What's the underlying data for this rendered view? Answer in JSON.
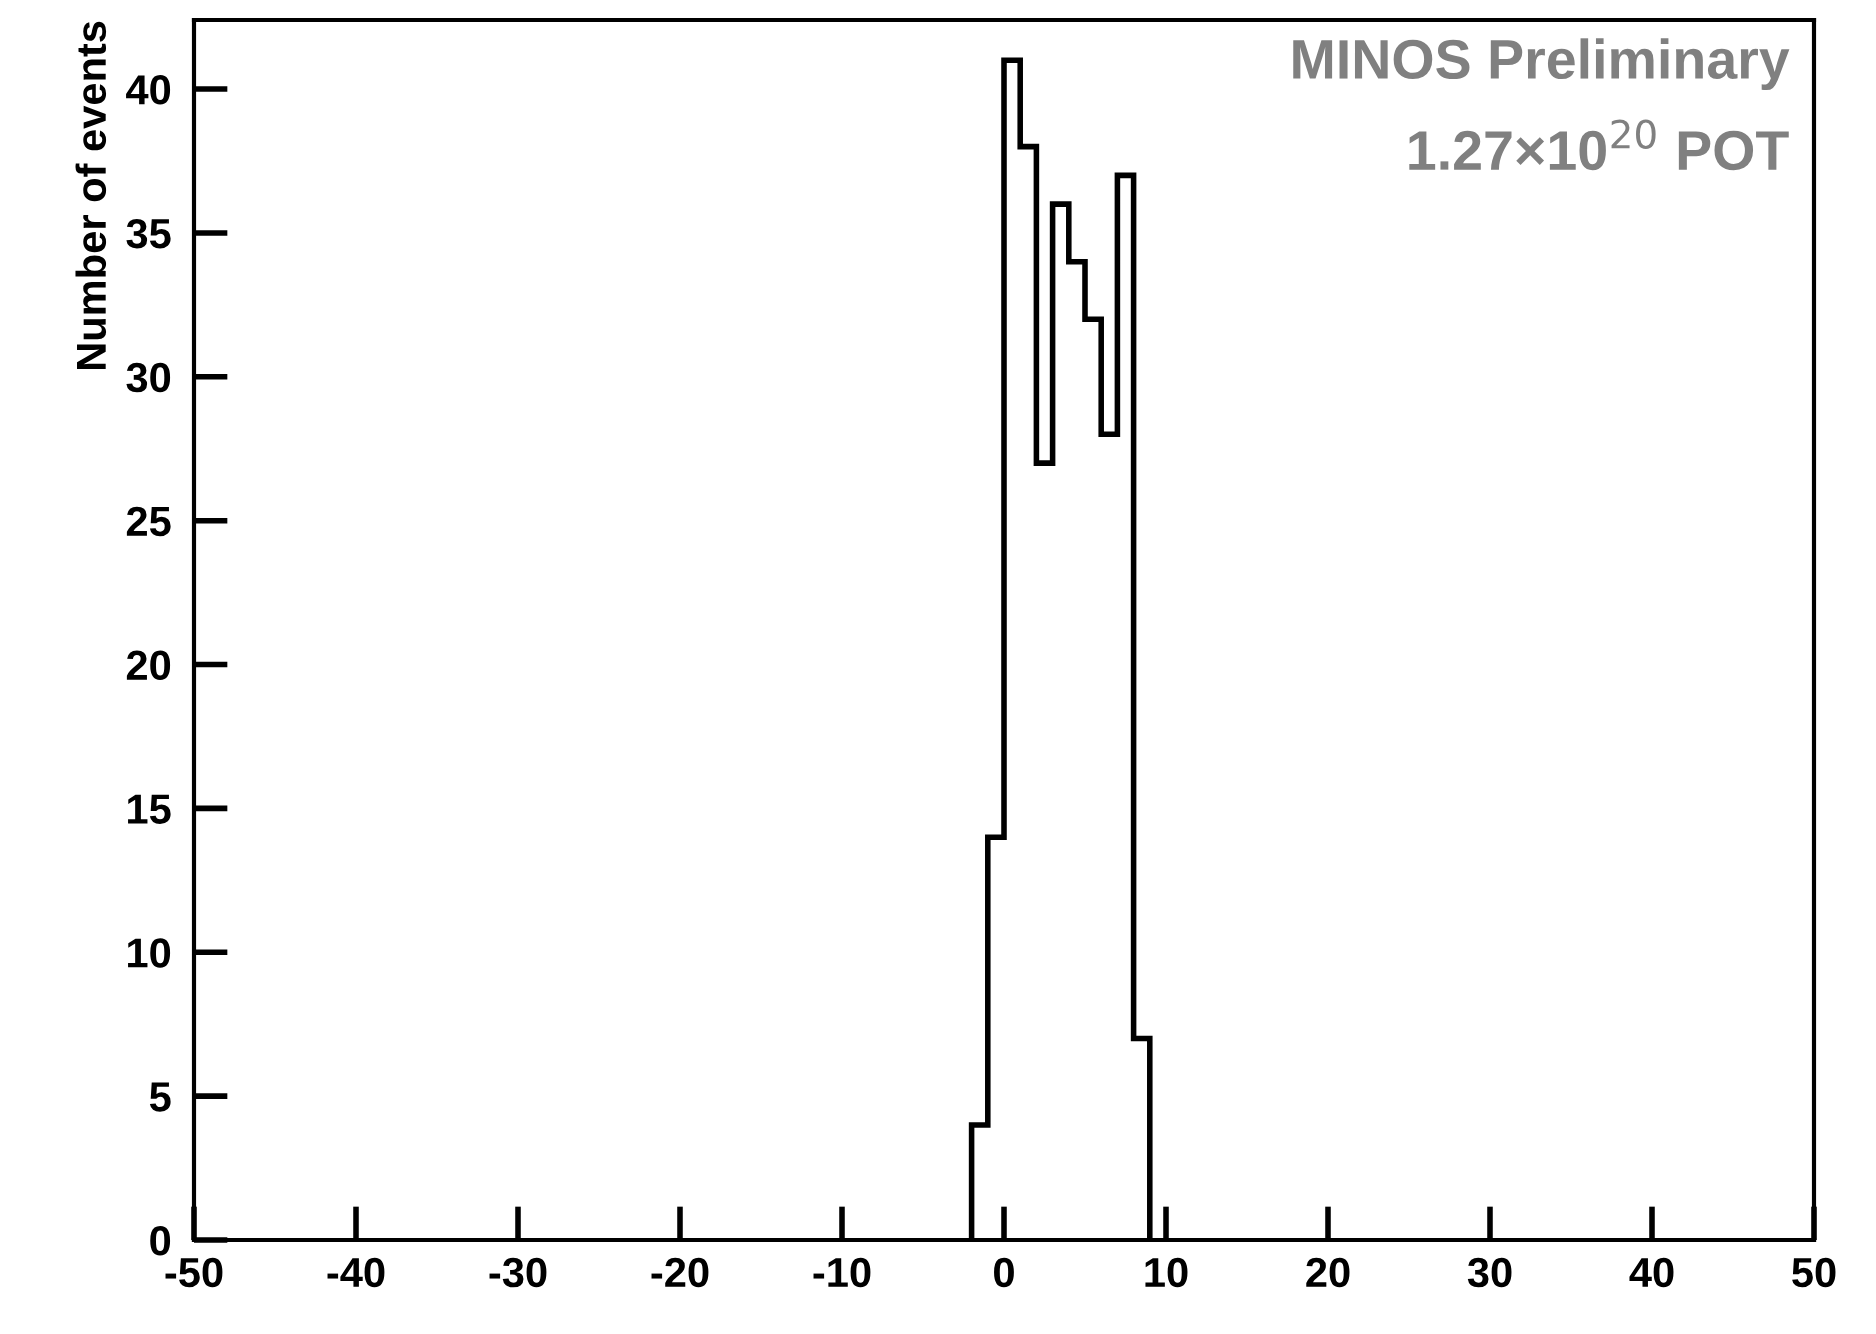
{
  "chart_data": {
    "type": "histogram",
    "ylabel": "Number of events",
    "bins": [
      -2,
      -1,
      0,
      1,
      2,
      3,
      4,
      5,
      6,
      7,
      8,
      9
    ],
    "values": [
      4,
      14,
      41,
      38,
      27,
      36,
      34,
      32,
      28,
      37,
      7
    ],
    "color": "#000000",
    "xlim": [
      -50,
      50
    ],
    "xticks": [
      -50,
      -40,
      -30,
      -20,
      -10,
      0,
      10,
      20,
      30,
      40,
      50
    ],
    "ylim": [
      0,
      42.4
    ],
    "yticks": [
      0,
      5,
      10,
      15,
      20,
      25,
      30,
      35,
      40
    ],
    "grid": false,
    "legend": false,
    "annotations": [
      "MINOS Preliminary",
      "1.27×10$^{20}$ POT"
    ]
  }
}
